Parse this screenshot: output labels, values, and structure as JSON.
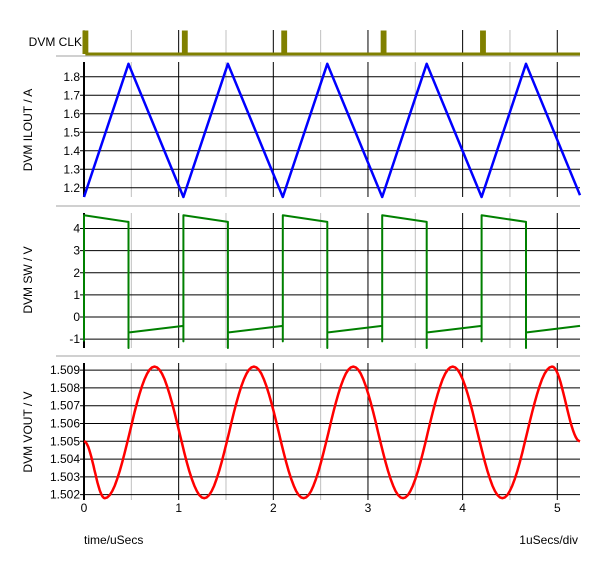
{
  "chart_data": [
    {
      "type": "line",
      "ylabel": "DVM CLK",
      "color": "#808000",
      "pulse_times": [
        0,
        1.05,
        2.1,
        3.15,
        4.2
      ],
      "pulse_width": 0.03,
      "ylim": [
        0,
        1
      ],
      "grid": true
    },
    {
      "type": "line",
      "ylabel": "DVM ILOUT / A",
      "color": "#0000ff",
      "yticks": [
        "1.2",
        "1.3",
        "1.4",
        "1.5",
        "1.6",
        "1.7",
        "1.8"
      ],
      "ylim": [
        1.15,
        1.88
      ],
      "x": [
        0,
        0.47,
        1.05,
        1.52,
        2.1,
        2.57,
        3.15,
        3.62,
        4.2,
        4.67,
        5.24
      ],
      "y": [
        1.15,
        1.87,
        1.15,
        1.87,
        1.15,
        1.87,
        1.15,
        1.87,
        1.15,
        1.87,
        1.16
      ],
      "grid": true
    },
    {
      "type": "line",
      "ylabel": "DVM SW / V",
      "color": "#008000",
      "yticks": [
        "-1",
        "0",
        "1",
        "2",
        "3",
        "4"
      ],
      "ylim": [
        -1.4,
        4.7
      ],
      "x": [
        0,
        0,
        0.47,
        0.47,
        0.47,
        1.05,
        1.05,
        1.05,
        1.52,
        1.52,
        1.52,
        2.1,
        2.1,
        2.1,
        2.57,
        2.57,
        2.57,
        3.15,
        3.15,
        3.15,
        3.62,
        3.62,
        3.62,
        4.2,
        4.2,
        4.2,
        4.67,
        4.67,
        4.67,
        5.24
      ],
      "y": [
        -1.1,
        4.6,
        4.3,
        -1.4,
        -0.7,
        -0.4,
        -1.1,
        4.6,
        4.3,
        -1.4,
        -0.7,
        -0.4,
        -1.1,
        4.6,
        4.3,
        -1.4,
        -0.7,
        -0.4,
        -1.1,
        4.6,
        4.3,
        -1.4,
        -0.7,
        -0.4,
        -1.1,
        4.6,
        4.3,
        -1.4,
        -0.7,
        -0.4
      ],
      "grid": true
    },
    {
      "type": "line",
      "ylabel": "DVM VOUT / V",
      "color": "#ff0000",
      "yticks": [
        "1.502",
        "1.503",
        "1.504",
        "1.505",
        "1.506",
        "1.507",
        "1.508",
        "1.509"
      ],
      "ylim": [
        1.5017,
        1.5094
      ],
      "x": [
        0,
        0.22,
        0.745,
        1.27,
        1.795,
        2.32,
        2.845,
        3.37,
        3.895,
        4.42,
        4.945,
        5.24
      ],
      "y": [
        1.505,
        1.5018,
        1.5092,
        1.5018,
        1.5092,
        1.5018,
        1.5092,
        1.5018,
        1.5092,
        1.5018,
        1.5092,
        1.505
      ],
      "grid": true
    }
  ],
  "x_axis": {
    "label": "time/uSecs",
    "scale_label": "1uSecs/div",
    "ticks": [
      "0",
      "1",
      "2",
      "3",
      "4",
      "5"
    ],
    "xlim": [
      0,
      5.24
    ]
  }
}
